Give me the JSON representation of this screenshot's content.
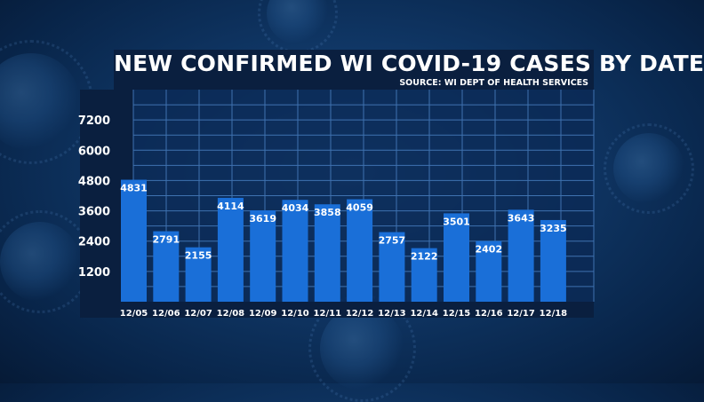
{
  "colors": {
    "bar": "#1a6fd8",
    "plot_bg": "#0b2a55",
    "axis_strip": "#0a1f3f",
    "grid": "#3f72b0"
  },
  "chart_data": {
    "type": "bar",
    "title": "NEW CONFIRMED WI COVID-19 CASES BY DATE",
    "subtitle": "SOURCE: WI DEPT OF HEALTH SERVICES",
    "categories": [
      "12/05",
      "12/06",
      "12/07",
      "12/08",
      "12/09",
      "12/10",
      "12/11",
      "12/12",
      "12/13",
      "12/14",
      "12/15",
      "12/16",
      "12/17",
      "12/18"
    ],
    "values": [
      4831,
      2791,
      2155,
      4114,
      3619,
      4034,
      3858,
      4059,
      2757,
      2122,
      3501,
      2402,
      3643,
      3235
    ],
    "yticks": [
      1200,
      2400,
      3600,
      4800,
      6000,
      7200
    ],
    "ylim": [
      0,
      8400
    ],
    "grid": true,
    "data_labels": true
  }
}
